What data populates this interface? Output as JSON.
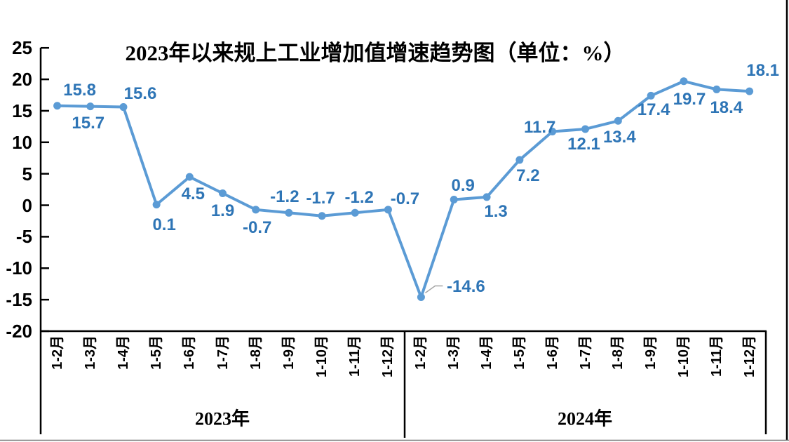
{
  "page": {
    "background": "#FFFFFF"
  },
  "chart_data": {
    "type": "line",
    "title": "2023年以来规上工业增加值增速趋势图（单位：%）",
    "unit": "%",
    "legend": "none",
    "grid": "off",
    "y_axis": {
      "min": -20,
      "max": 25,
      "step": 5,
      "ticks": [
        25,
        20,
        15,
        10,
        5,
        0,
        -5,
        -10,
        -15,
        -20
      ]
    },
    "groups": [
      {
        "year": "2023年",
        "months": [
          "1-2月",
          "1-3月",
          "1-4月",
          "1-5月",
          "1-6月",
          "1-7月",
          "1-8月",
          "1-9月",
          "1-10月",
          "1-11月",
          "1-12月"
        ],
        "values": [
          15.8,
          15.7,
          15.6,
          0.1,
          4.5,
          1.9,
          -0.7,
          -1.2,
          -1.7,
          -1.2,
          -0.7
        ]
      },
      {
        "year": "2024年",
        "months": [
          "1-2月",
          "1-3月",
          "1-4月",
          "1-5月",
          "1-6月",
          "1-7月",
          "1-8月",
          "1-9月",
          "1-10月",
          "1-11月",
          "1-12月"
        ],
        "values": [
          -14.6,
          0.9,
          1.3,
          7.2,
          11.7,
          12.1,
          13.4,
          17.4,
          19.7,
          18.4,
          18.1
        ]
      }
    ],
    "data_labels": [
      "15.8",
      "15.7",
      "15.6",
      "0.1",
      "4.5",
      "1.9",
      "-0.7",
      "-1.2",
      "-1.7",
      "-1.2",
      "-0.7",
      "-14.6",
      "0.9",
      "1.3",
      "7.2",
      "11.7",
      "12.1",
      "13.4",
      "17.4",
      "19.7",
      "18.4",
      "18.1"
    ],
    "colors": {
      "line": "#5B9BD5",
      "marker": "#5B9BD5",
      "data_label": "#2E75B6",
      "axis": "#000000",
      "leader_line": "#A6A6A6"
    }
  }
}
